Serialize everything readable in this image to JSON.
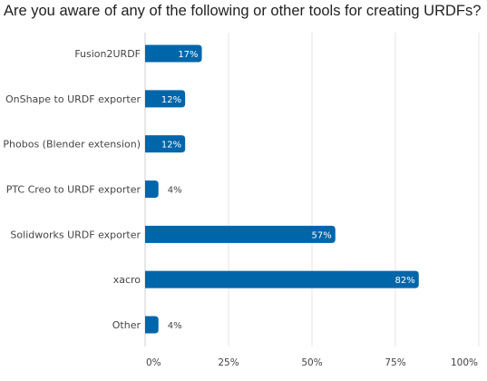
{
  "chart_data": {
    "type": "bar",
    "orientation": "horizontal",
    "title": "Are you aware of any of the following or other tools for creating URDFs?",
    "categories": [
      "Fusion2URDF",
      "OnShape to URDF exporter",
      "Phobos (Blender extension)",
      "PTC Creo to URDF exporter",
      "Solidworks URDF exporter",
      "xacro",
      "Other"
    ],
    "values": [
      17,
      12,
      12,
      4,
      57,
      82,
      4
    ],
    "value_labels": [
      "17%",
      "12%",
      "12%",
      "4%",
      "57%",
      "82%",
      "4%"
    ],
    "xlim": [
      0,
      100
    ],
    "x_ticks": [
      "0%",
      "25%",
      "50%",
      "75%",
      "100%"
    ],
    "xlabel": "",
    "ylabel": "",
    "grid": true,
    "bar_color": "#0066aa",
    "label_inside_color": "#ffffff",
    "label_outside_color": "#444444",
    "grid_color": "#e4e4e4"
  }
}
